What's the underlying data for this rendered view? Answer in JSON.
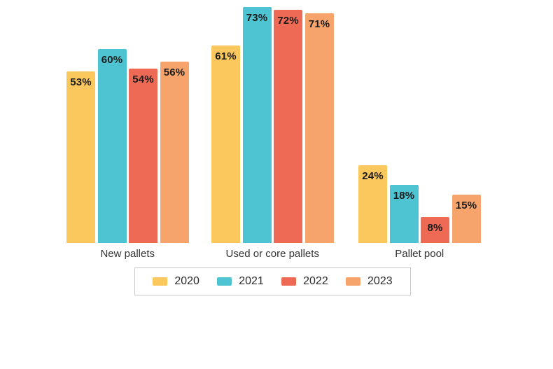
{
  "chart_data": {
    "type": "bar",
    "title": "",
    "categories": [
      "New pallets",
      "Used or core pallets",
      "Pallet pool"
    ],
    "series": [
      {
        "name": "2020",
        "color": "#FAC85C",
        "values": [
          53,
          61,
          24
        ]
      },
      {
        "name": "2021",
        "color": "#4EC4D2",
        "values": [
          60,
          73,
          18
        ]
      },
      {
        "name": "2022",
        "color": "#EE6A55",
        "values": [
          54,
          72,
          8
        ]
      },
      {
        "name": "2023",
        "color": "#F6A46B",
        "values": [
          56,
          71,
          15
        ]
      }
    ],
    "value_suffix": "%",
    "data_labels": true,
    "data_label_position": "inside-top",
    "xlabel": "",
    "ylabel": "",
    "ylim": [
      0,
      75
    ],
    "grid": false,
    "axes_visible": false,
    "legend_position": "bottom",
    "legend_border_color": "#c9c9c9",
    "background_color": "#ffffff"
  }
}
